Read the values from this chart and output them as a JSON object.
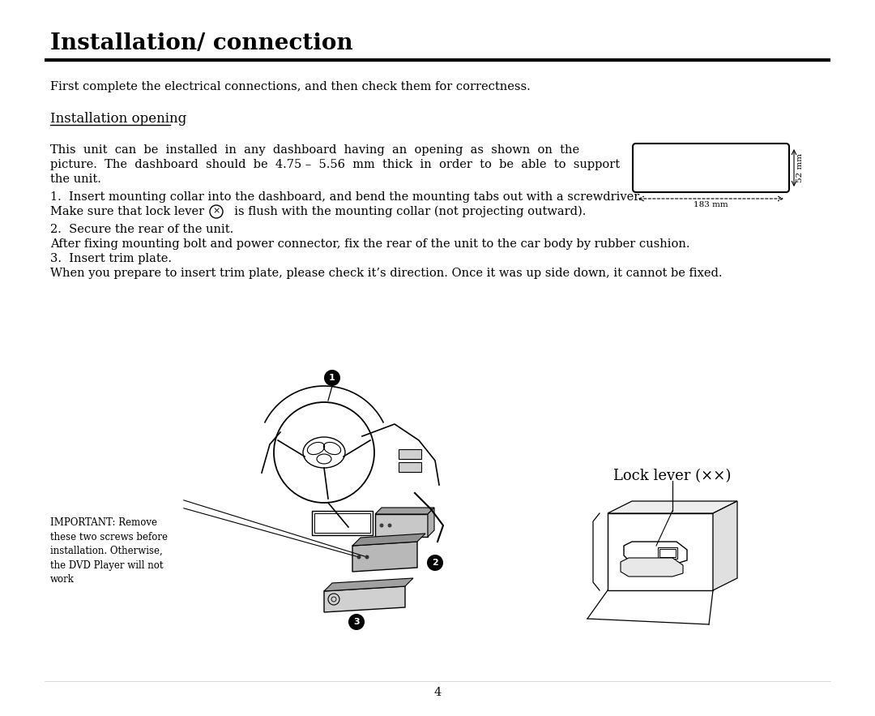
{
  "title": "Installation/ connection",
  "title_fontsize": 20,
  "body_fontsize": 10.5,
  "sub_fontsize": 12,
  "bg_color": "#ffffff",
  "text_color": "#000000",
  "page_number": "4",
  "para1": "First complete the electrical connections, and then check them for correctness.",
  "subtitle": "Installation opening",
  "step1_a": "1.  Insert mounting collar into the dashboard, and bend the mounting tabs out with a screwdriver.",
  "step1_b": "Make sure that lock lever ",
  "step1_b2": "  is flush with the mounting collar (not projecting outward).",
  "step2": "2.  Secure the rear of the unit.",
  "after_fix": "After fixing mounting bolt and power connector, fix the rear of the unit to the car body by rubber cushion.",
  "step3": "3.  Insert trim plate.",
  "when": "When you prepare to insert trim plate, please check it’s direction. Once it was up side down, it cannot be fixed.",
  "body_para": "This unit can be installed in any dashboard having an opening as shown on the picture. The dashboard should be 4.75 – 5.56 mm thick in order to be able to support the unit.",
  "important_text": "IMPORTANT: Remove\nthese two screws before\ninstallation. Otherwise,\nthe DVD Player will not\nwork",
  "lock_lever_label": "Lock lever (××)",
  "dim_183": "183 mm",
  "dim_52": "52 mm"
}
